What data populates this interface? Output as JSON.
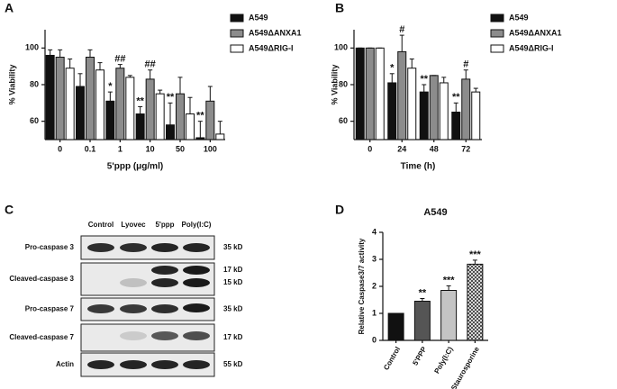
{
  "chart_data": [
    {
      "label": "A",
      "type": "bar",
      "xlabel": "5'ppp (μg/ml)",
      "ylabel": "% Viability",
      "categories": [
        "0",
        "0.1",
        "1",
        "10",
        "50",
        "100"
      ],
      "ylim": [
        50,
        110
      ],
      "yticks": [
        60,
        80,
        100
      ],
      "series": [
        {
          "name": "A549",
          "color": "#111111",
          "values": [
            96,
            79,
            71,
            64,
            58,
            51
          ],
          "errors": [
            3,
            7,
            5,
            4,
            12,
            9
          ],
          "significance": [
            null,
            null,
            "*",
            "**",
            "**",
            "**"
          ]
        },
        {
          "name": "A549ΔANXA1",
          "color": "#8c8c8c",
          "values": [
            95,
            95,
            89,
            83,
            75,
            71
          ],
          "errors": [
            4,
            4,
            2,
            5,
            9,
            8
          ],
          "significance": [
            null,
            null,
            "##",
            "##",
            null,
            null
          ]
        },
        {
          "name": "A549ΔRIG-I",
          "color": "#ffffff",
          "values": [
            89,
            88,
            84,
            75,
            64,
            53
          ],
          "errors": [
            5,
            4,
            1,
            2,
            9,
            7
          ],
          "significance": [
            null,
            null,
            null,
            null,
            null,
            null
          ]
        }
      ]
    },
    {
      "label": "B",
      "type": "bar",
      "xlabel": "Time (h)",
      "ylabel": "% Viability",
      "categories": [
        "0",
        "24",
        "48",
        "72"
      ],
      "ylim": [
        50,
        110
      ],
      "yticks": [
        60,
        80,
        100
      ],
      "series": [
        {
          "name": "A549",
          "color": "#111111",
          "values": [
            100,
            81,
            76,
            65
          ],
          "errors": [
            0,
            5,
            4,
            5
          ],
          "significance": [
            null,
            "*",
            "**",
            "**"
          ]
        },
        {
          "name": "A549ΔANXA1",
          "color": "#8c8c8c",
          "values": [
            100,
            98,
            85,
            83
          ],
          "errors": [
            0,
            9,
            0,
            5
          ],
          "significance": [
            null,
            "#",
            null,
            "#"
          ]
        },
        {
          "name": "A549ΔRIG-I",
          "color": "#ffffff",
          "values": [
            100,
            89,
            81,
            76
          ],
          "errors": [
            0,
            5,
            3,
            2
          ],
          "significance": [
            null,
            null,
            null,
            null
          ]
        }
      ]
    },
    {
      "label": "D",
      "type": "bar",
      "title": "A549",
      "ylabel": "Relative Caspase3/7 activity",
      "categories": [
        "Control",
        "5'PPP",
        "Poly(I:C)",
        "Staurosporine"
      ],
      "ylim": [
        0,
        4
      ],
      "yticks": [
        0,
        1,
        2,
        3,
        4
      ],
      "values": [
        1,
        1.45,
        1.85,
        2.82
      ],
      "errors": [
        0,
        0.1,
        0.17,
        0.15
      ],
      "significance": [
        null,
        "**",
        "***",
        "***"
      ],
      "colors": [
        "#111111",
        "#555555",
        "#c4c4c4",
        "#888888"
      ],
      "hatch": [
        false,
        false,
        false,
        true
      ]
    }
  ],
  "blot": {
    "label": "C",
    "columns": [
      "Control",
      "Lyovec",
      "5'ppp",
      "Poly(I:C)"
    ],
    "rows": [
      {
        "name": "Pro-caspase 3",
        "sizes": [
          "35 kD"
        ]
      },
      {
        "name": "Cleaved-caspase 3",
        "sizes": [
          "17 kD",
          "15 kD"
        ]
      },
      {
        "name": "Pro-caspase 7",
        "sizes": [
          "35 kD"
        ]
      },
      {
        "name": "Cleaved-caspase 7",
        "sizes": [
          "17 kD"
        ]
      },
      {
        "name": "Actin",
        "sizes": [
          "55 kD"
        ]
      }
    ]
  }
}
